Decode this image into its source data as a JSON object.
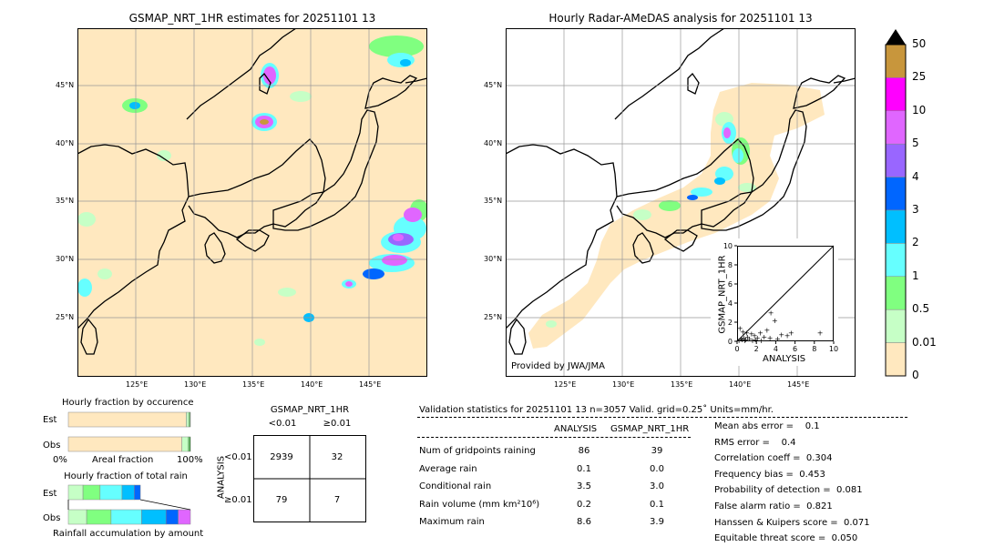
{
  "left_map": {
    "title": "GSMAP_NRT_1HR estimates for 20251101 13",
    "lon_ticks": [
      "125°E",
      "130°E",
      "135°E",
      "140°E",
      "145°E"
    ],
    "lat_ticks": [
      "45°N",
      "40°N",
      "35°N",
      "30°N",
      "25°N"
    ]
  },
  "right_map": {
    "title": "Hourly Radar-AMeDAS analysis for 20251101 13",
    "lon_ticks": [
      "125°E",
      "130°E",
      "135°E",
      "140°E",
      "145°E"
    ],
    "lat_ticks": [
      "45°N",
      "40°N",
      "35°N",
      "30°N",
      "25°N"
    ],
    "credit": "Provided by JWA/JMA"
  },
  "colorbar": {
    "labels": [
      "50",
      "25",
      "10",
      "5",
      "4",
      "3",
      "2",
      "1",
      "0.5",
      "0.01",
      "0"
    ],
    "colors": [
      "#c8963c",
      "#ff00ff",
      "#e066ff",
      "#9966ff",
      "#0066ff",
      "#00bfff",
      "#66ffff",
      "#80ff80",
      "#c6ffc6",
      "#ffe8bf"
    ]
  },
  "chart_data": [
    {
      "type": "scatter",
      "xlabel": "ANALYSIS",
      "ylabel": "GSMAP_NRT_1HR",
      "xlim": [
        0,
        10
      ],
      "ylim": [
        0,
        10
      ],
      "x_ticks": [
        "0",
        "2",
        "4",
        "6",
        "8",
        "10"
      ],
      "y_ticks": [
        "0",
        "2",
        "4",
        "6",
        "8",
        "10"
      ],
      "points": [
        [
          0.2,
          0.1
        ],
        [
          0.4,
          0.3
        ],
        [
          0.5,
          0.2
        ],
        [
          0.7,
          0.4
        ],
        [
          0.9,
          0.2
        ],
        [
          1.1,
          0.5
        ],
        [
          1.3,
          0.3
        ],
        [
          1.5,
          0.8
        ],
        [
          1.8,
          0.6
        ],
        [
          2.1,
          0.4
        ],
        [
          2.4,
          0.9
        ],
        [
          2.8,
          0.5
        ],
        [
          3.1,
          1.2
        ],
        [
          3.4,
          0.4
        ],
        [
          3.5,
          3.0
        ],
        [
          3.9,
          2.2
        ],
        [
          4.2,
          0.3
        ],
        [
          4.6,
          0.7
        ],
        [
          5.2,
          0.6
        ],
        [
          5.6,
          0.9
        ],
        [
          8.6,
          0.9
        ],
        [
          0.3,
          1.4
        ],
        [
          0.6,
          1.0
        ],
        [
          1.0,
          0.9
        ],
        [
          1.9,
          0.2
        ],
        [
          2.5,
          0.1
        ],
        [
          0.8,
          0.1
        ],
        [
          1.6,
          0.1
        ]
      ]
    },
    {
      "type": "bar",
      "title": "Hourly fraction by occurence",
      "categories": [
        "Est",
        "Obs"
      ],
      "xlabel": "Areal fraction",
      "x_ticks": [
        "0%",
        "100%"
      ],
      "fractions": [
        [
          0.966,
          0.02,
          0.01,
          0.004
        ],
        [
          0.93,
          0.05,
          0.012,
          0.008
        ]
      ]
    },
    {
      "type": "bar",
      "title": "Hourly fraction of total rain",
      "categories": [
        "Est",
        "Obs"
      ],
      "xlabel": "Rainfall accumulation by amount",
      "fractions": [
        [
          0.12,
          0.14,
          0.18,
          0.1,
          0.05
        ],
        [
          0.15,
          0.2,
          0.25,
          0.2,
          0.1,
          0.1
        ]
      ]
    },
    {
      "type": "table",
      "header": "GSMAP_NRT_1HR",
      "cols": [
        "<0.01",
        "≥0.01"
      ],
      "row_axis": "ANALYSIS",
      "rows": [
        "<0.01",
        "≥0.01"
      ],
      "values": [
        [
          2939,
          32
        ],
        [
          79,
          7
        ]
      ]
    }
  ],
  "stats": {
    "header": "Validation statistics for 20251101 13  n=3057 Valid. grid=0.25˚ Units=mm/hr.",
    "col1": "ANALYSIS",
    "col2": "GSMAP_NRT_1HR",
    "rows": [
      {
        "label": "Num of gridpoints raining",
        "a": "86",
        "b": "39"
      },
      {
        "label": "Average rain",
        "a": "0.1",
        "b": "0.0"
      },
      {
        "label": "Conditional rain",
        "a": "3.5",
        "b": "3.0"
      },
      {
        "label": "Rain volume (mm km²10⁶)",
        "a": "0.2",
        "b": "0.1"
      },
      {
        "label": "Maximum rain",
        "a": "8.6",
        "b": "3.9"
      }
    ],
    "scores": [
      "Mean abs error =    0.1",
      "RMS error =    0.4",
      "Correlation coeff =  0.304",
      "Frequency bias =  0.453",
      "Probability of detection =  0.081",
      "False alarm ratio =  0.821",
      "Hanssen & Kuipers score =  0.071",
      "Equitable threat score =  0.050"
    ]
  }
}
